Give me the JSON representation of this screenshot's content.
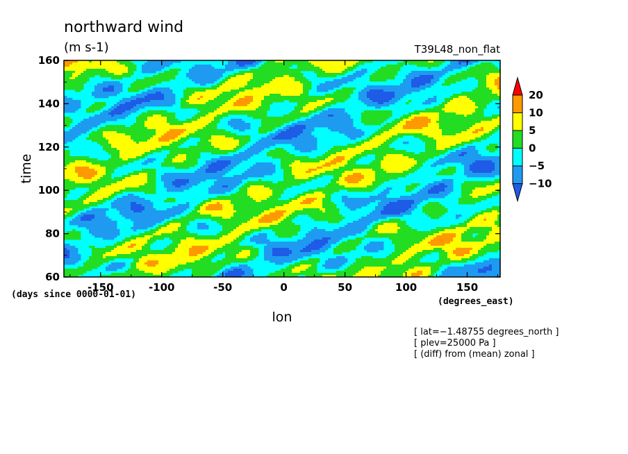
{
  "chart_data": {
    "type": "heatmap",
    "title": "northward wind",
    "units": "(m s-1)",
    "experiment": "T39L48_non_flat",
    "xlabel": "lon",
    "ylabel": "time",
    "x_units": "(degrees_east)",
    "y_units": "(days since 0000-01-01)",
    "xlim": [
      -180,
      177
    ],
    "ylim": [
      60,
      160
    ],
    "x_ticks": [
      -150,
      -100,
      -50,
      0,
      50,
      100,
      150
    ],
    "x_tick_labels": [
      "-150",
      "-100",
      "-50",
      "0",
      "50",
      "100",
      "150"
    ],
    "y_ticks": [
      60,
      80,
      100,
      120,
      140,
      160
    ],
    "y_tick_labels": [
      "60",
      "80",
      "100",
      "120",
      "140",
      "160"
    ],
    "levels": [
      -10,
      -5,
      0,
      5,
      10,
      20
    ],
    "colorbar_labels": [
      "20",
      "10",
      "5",
      "0",
      "−5",
      "−10"
    ],
    "colors": [
      "#1e5be6",
      "#1e9bf0",
      "#00ffff",
      "#22dd22",
      "#ffff00",
      "#ff9900",
      "#ff0000"
    ],
    "colorbar_placement": "right",
    "notes": [
      "[ lat=−1.48755 degrees_north ]",
      "[ plev=25000 Pa ]",
      "[ (diff) from (mean) zonal ]"
    ]
  }
}
